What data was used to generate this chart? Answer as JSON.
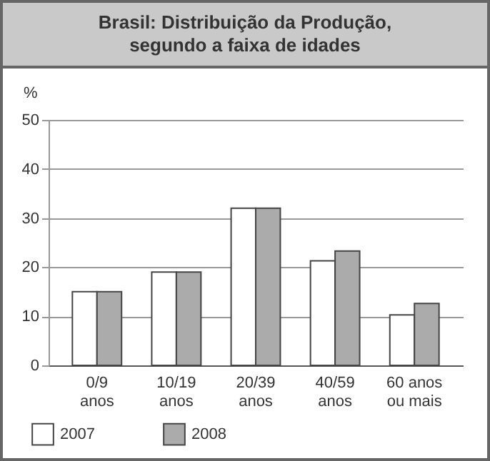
{
  "chart_data": {
    "type": "bar",
    "title": "Brasil: Distribuição da Produção,\nsegundo a faixa de idades",
    "ylabel": "%",
    "categories": [
      "0/9\nanos",
      "10/19\nanos",
      "20/39\nanos",
      "40/59\nanos",
      "60 anos\nou mais"
    ],
    "series": [
      {
        "name": "2007",
        "color": "#ffffff",
        "values": [
          15,
          19,
          32,
          21.3,
          10.3
        ]
      },
      {
        "name": "2008",
        "color": "#ababab",
        "values": [
          15,
          19,
          32,
          23.3,
          12.6
        ]
      }
    ],
    "ylim": [
      0,
      50
    ],
    "yticks": [
      0,
      10,
      20,
      30,
      40,
      50
    ],
    "grid": "y",
    "legend": "bottom left"
  }
}
